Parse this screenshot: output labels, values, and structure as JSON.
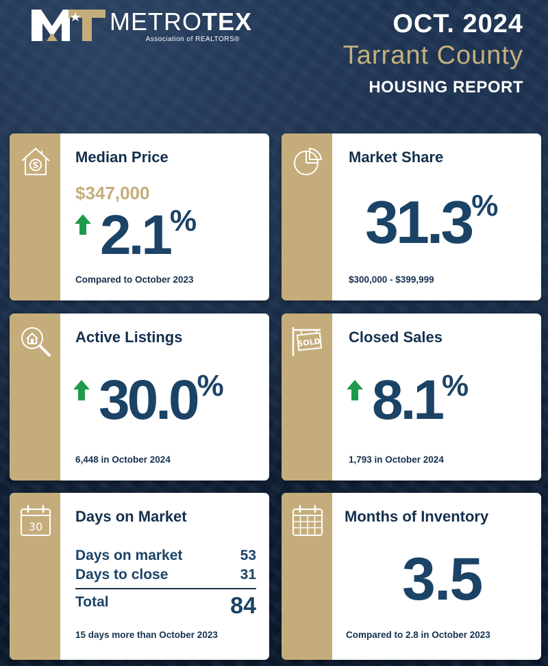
{
  "header": {
    "logo": {
      "name_light": "METRO",
      "name_bold": "TEX",
      "subtitle": "Association of REALTORS®"
    },
    "date": "OCT. 2024",
    "county": "Tarrant County",
    "report": "HOUSING REPORT"
  },
  "colors": {
    "navy": "#14304e",
    "gold": "#c5ad7b",
    "value_blue": "#1b4366",
    "up_arrow": "#1f9a4a"
  },
  "median_price": {
    "icon": "house-dollar-icon",
    "title": "Median Price",
    "price": "$347,000",
    "change": "2.1",
    "unit": "%",
    "direction": "up",
    "footer": "Compared to October 2023"
  },
  "market_share": {
    "icon": "pie-chart-icon",
    "title": "Market Share",
    "value": "31.3",
    "unit": "%",
    "footer": "$300,000 - $399,999"
  },
  "active_listings": {
    "icon": "house-search-icon",
    "title": "Active Listings",
    "change": "30.0",
    "unit": "%",
    "direction": "up",
    "footer": "6,448 in October 2024"
  },
  "closed_sales": {
    "icon": "sold-sign-icon",
    "title": "Closed Sales",
    "change": "8.1",
    "unit": "%",
    "direction": "up",
    "footer": "1,793 in October 2024"
  },
  "days_on_market": {
    "icon": "calendar-30-icon",
    "icon_text": "30",
    "title": "Days on Market",
    "rows": [
      {
        "label": "Days on market",
        "value": "53"
      },
      {
        "label": "Days to close",
        "value": "31"
      }
    ],
    "total_label": "Total",
    "total_value": "84",
    "footer": "15 days more than October 2023"
  },
  "months_inventory": {
    "icon": "calendar-grid-icon",
    "title": "Months of Inventory",
    "value": "3.5",
    "footer": "Compared to 2.8 in October 2023"
  }
}
